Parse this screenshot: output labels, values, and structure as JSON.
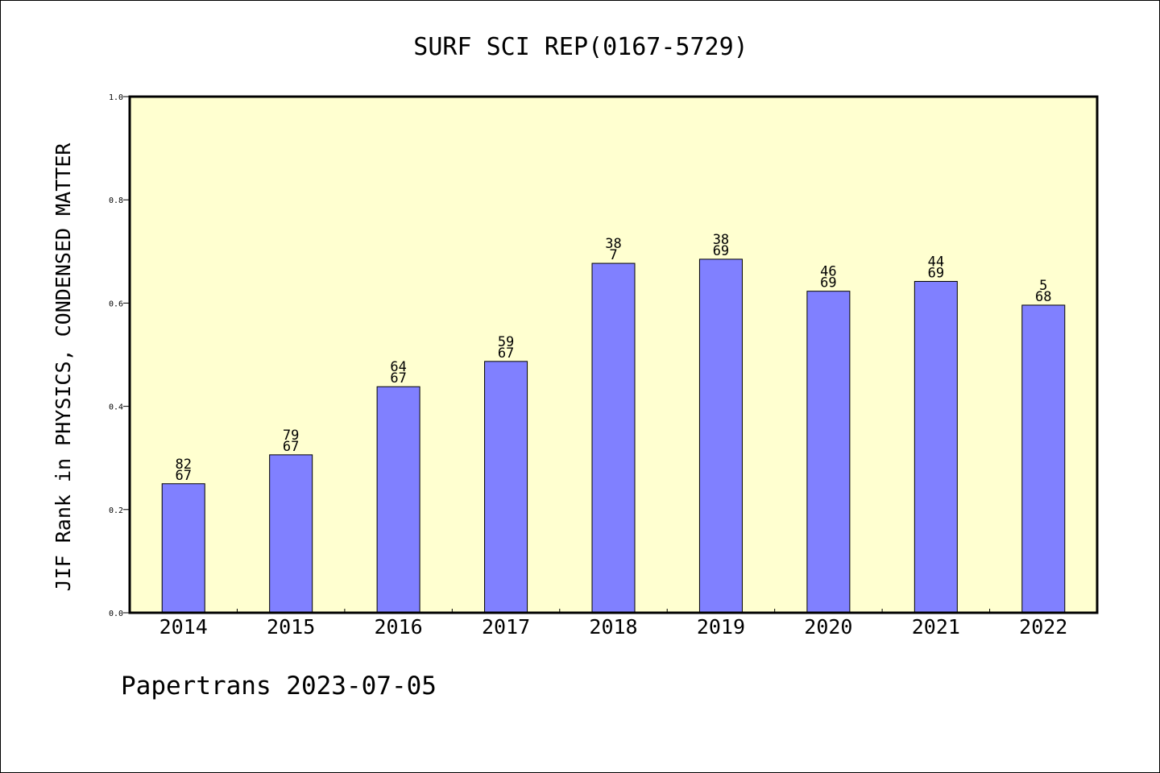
{
  "chart_data": {
    "type": "bar",
    "title": "SURF SCI REP(0167-5729)",
    "ylabel": "JIF Rank in PHYSICS, CONDENSED MATTER",
    "xlabel": "",
    "ylim": [
      0,
      1.0
    ],
    "yticks": [
      "0.0",
      "0.2",
      "0.4",
      "0.6",
      "0.8",
      "1.0"
    ],
    "categories": [
      "2014",
      "2015",
      "2016",
      "2017",
      "2018",
      "2019",
      "2020",
      "2021",
      "2022"
    ],
    "values": [
      0.25,
      0.306,
      0.438,
      0.487,
      0.677,
      0.685,
      0.623,
      0.642,
      0.596
    ],
    "bar_labels": [
      [
        "82",
        "67"
      ],
      [
        "79",
        "67"
      ],
      [
        "64",
        "67"
      ],
      [
        "59",
        "67"
      ],
      [
        "38",
        "7"
      ],
      [
        "38",
        "69"
      ],
      [
        "46",
        "69"
      ],
      [
        "44",
        "69"
      ],
      [
        "5",
        "68"
      ]
    ],
    "grid": false,
    "colors": {
      "plot_background": "#ffffd0",
      "bar_fill": "#8080ff",
      "bar_stroke": "#000000"
    }
  },
  "footer": "Papertrans 2023-07-05"
}
